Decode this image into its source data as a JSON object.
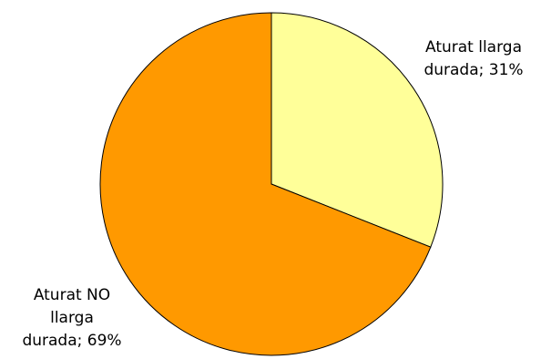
{
  "chart_data": {
    "type": "pie",
    "slices": [
      {
        "label": "Aturat llarga durada; 31%",
        "value": 31,
        "color": "#FFFF99"
      },
      {
        "label": "Aturat NO llarga durada; 69%",
        "value": 69,
        "color": "#FF9900"
      }
    ],
    "title": "",
    "legend": "none",
    "start": "top",
    "direction": "clockwise"
  },
  "labels": {
    "long": "Aturat llarga\ndurada; 31%",
    "not_long": "Aturat NO\nllarga\ndurada; 69%"
  }
}
